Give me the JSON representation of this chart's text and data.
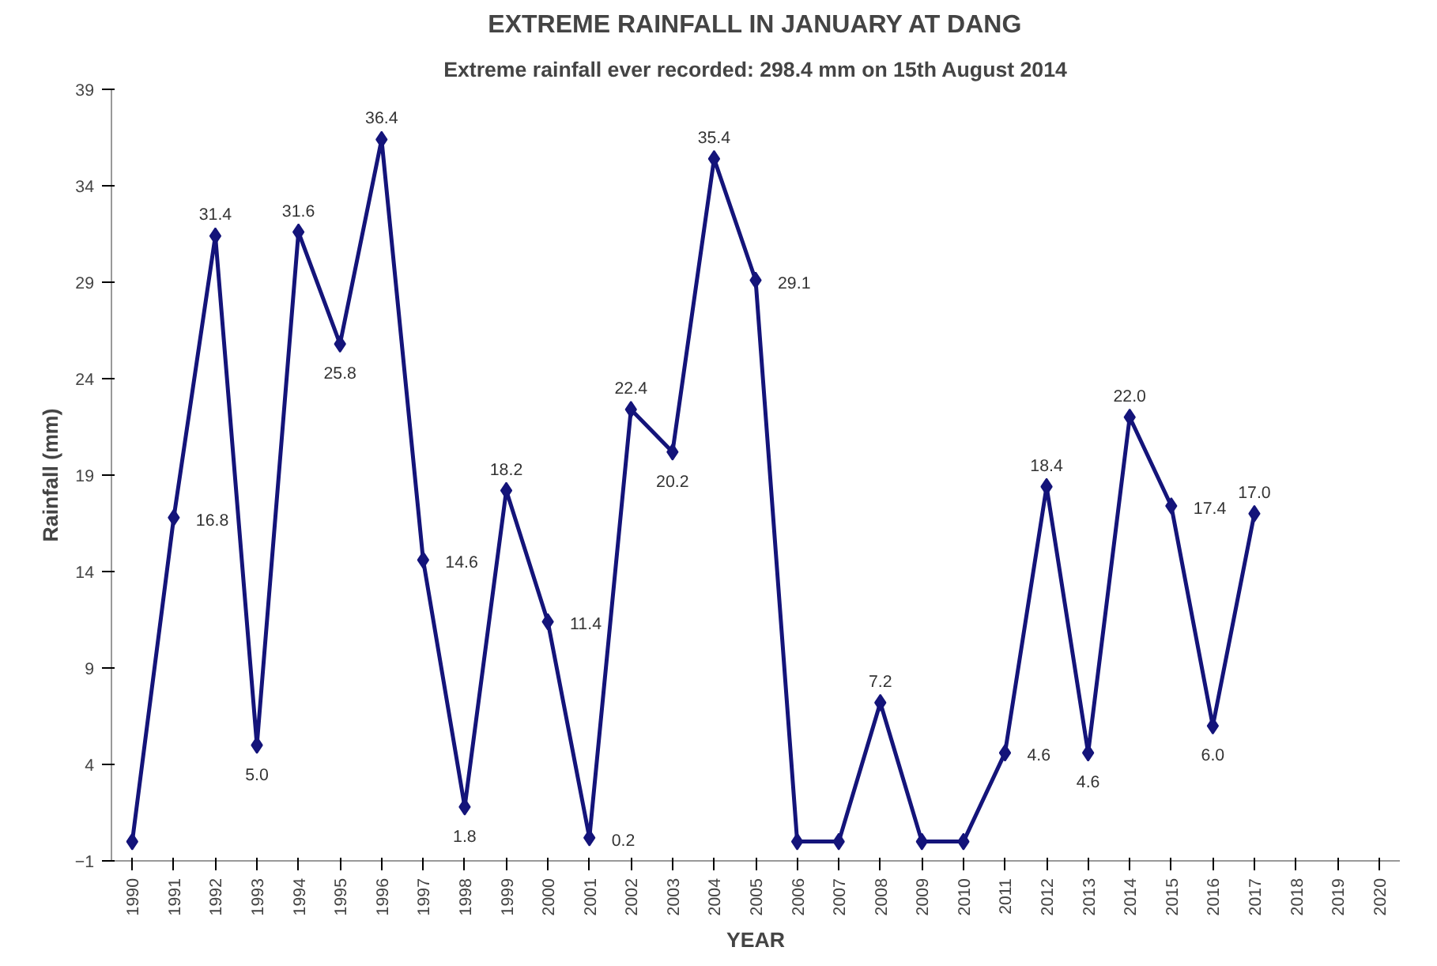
{
  "chart_data": {
    "type": "line",
    "title": "EXTREME RAINFALL IN JANUARY AT DANG",
    "subtitle": "Extreme rainfall ever recorded: 298.4 mm on 15th August 2014",
    "xlabel": "YEAR",
    "ylabel": "Rainfall (mm)",
    "categories": [
      "1990",
      "1991",
      "1992",
      "1993",
      "1994",
      "1995",
      "1996",
      "1997",
      "1998",
      "1999",
      "2000",
      "2001",
      "2002",
      "2003",
      "2004",
      "2005",
      "2006",
      "2007",
      "2008",
      "2009",
      "2010",
      "2011",
      "2012",
      "2013",
      "2014",
      "2015",
      "2016",
      "2017",
      "2018",
      "2019",
      "2020"
    ],
    "series": [
      {
        "color": "#14147a",
        "values": [
          0,
          16.8,
          31.4,
          5.0,
          31.6,
          25.8,
          36.4,
          14.6,
          1.8,
          18.2,
          11.4,
          0.2,
          22.4,
          20.2,
          35.4,
          29.1,
          0,
          0,
          7.2,
          0,
          0,
          4.6,
          18.4,
          4.6,
          22.0,
          17.4,
          6.0,
          17.0,
          null,
          null,
          null
        ],
        "value_labels": [
          null,
          "16.8",
          "31.4",
          "5.0",
          "31.6",
          "25.8",
          "36.4",
          "14.6",
          "1.8",
          "18.2",
          "11.4",
          "0.2",
          "22.4",
          "20.2",
          "35.4",
          "29.1",
          null,
          null,
          "7.2",
          null,
          null,
          "4.6",
          "18.4",
          "4.6",
          "22.0",
          "17.4",
          "6.0",
          "17.0",
          null,
          null,
          null
        ]
      }
    ],
    "ylim": [
      -1,
      39
    ],
    "yticks": [
      -1,
      4,
      9,
      14,
      19,
      24,
      29,
      34,
      39
    ],
    "grid": false,
    "marker": "diamond",
    "line_style": "solid"
  }
}
